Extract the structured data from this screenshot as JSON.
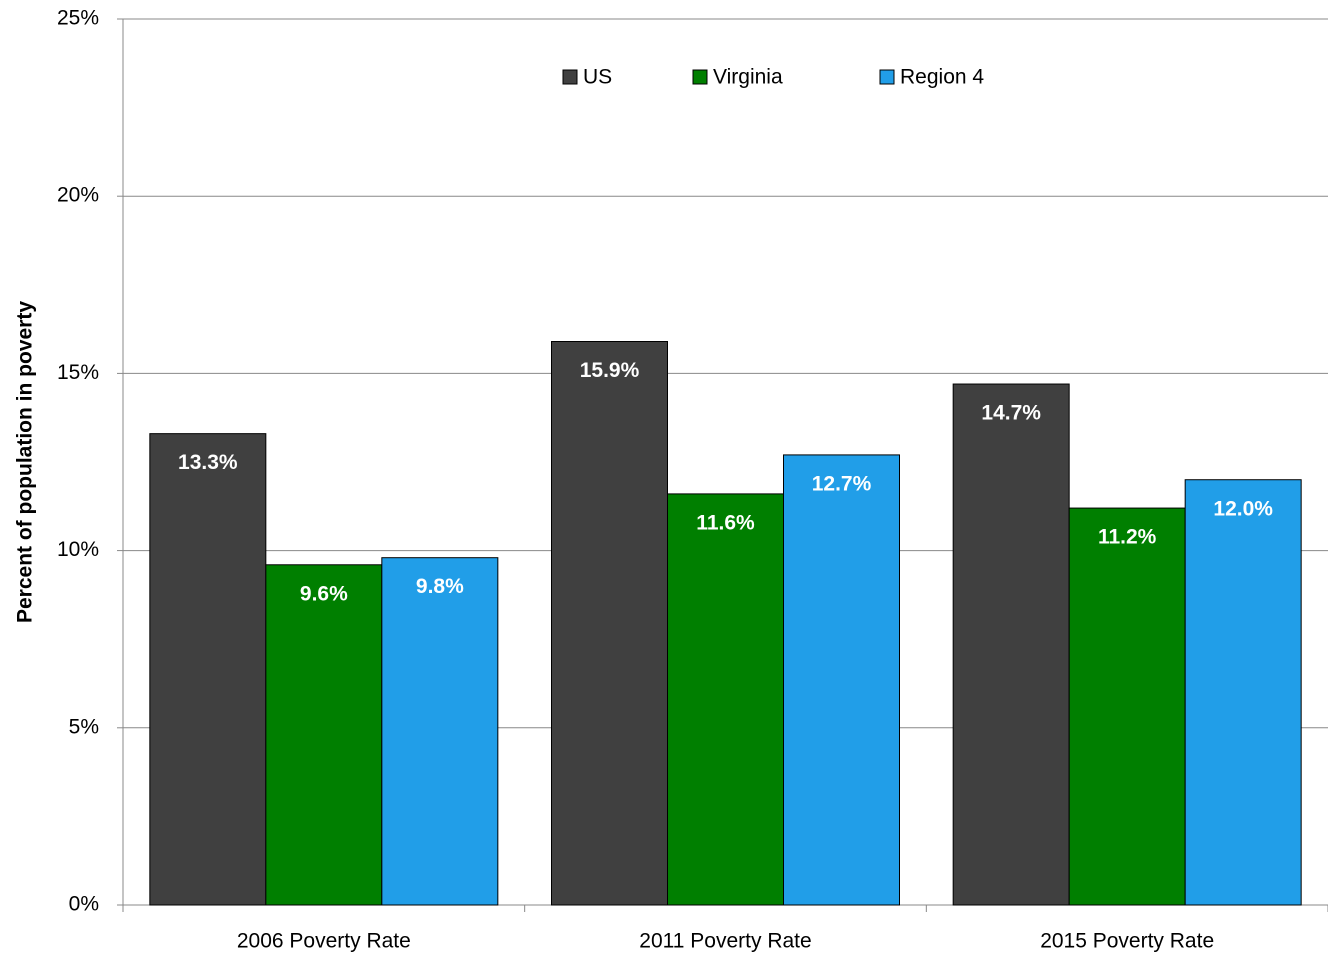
{
  "chart_data": {
    "type": "bar",
    "y_label": "Percent of population in poverty",
    "categories": [
      "2006 Poverty Rate",
      "2011 Poverty Rate",
      "2015 Poverty Rate"
    ],
    "series": [
      {
        "name": "US",
        "color": "#404040",
        "values": [
          13.3,
          15.9,
          14.7
        ],
        "value_labels": [
          "13.3%",
          "15.9%",
          "14.7%"
        ]
      },
      {
        "name": "Virginia",
        "color": "#007f00",
        "values": [
          9.6,
          11.6,
          11.2
        ],
        "value_labels": [
          "9.6%",
          "11.6%",
          "11.2%"
        ]
      },
      {
        "name": "Region 4",
        "color": "#219ee8",
        "values": [
          9.8,
          12.7,
          12.0
        ],
        "value_labels": [
          "9.8%",
          "12.7%",
          "12.0%"
        ]
      }
    ],
    "ylim": [
      0,
      25
    ],
    "yticks": [
      {
        "value": 0,
        "label": "0%"
      },
      {
        "value": 5,
        "label": "5%"
      },
      {
        "value": 10,
        "label": "10%"
      },
      {
        "value": 15,
        "label": "15%"
      },
      {
        "value": 20,
        "label": "20%"
      },
      {
        "value": 25,
        "label": "25%"
      }
    ],
    "grid": true,
    "legend": "top"
  }
}
